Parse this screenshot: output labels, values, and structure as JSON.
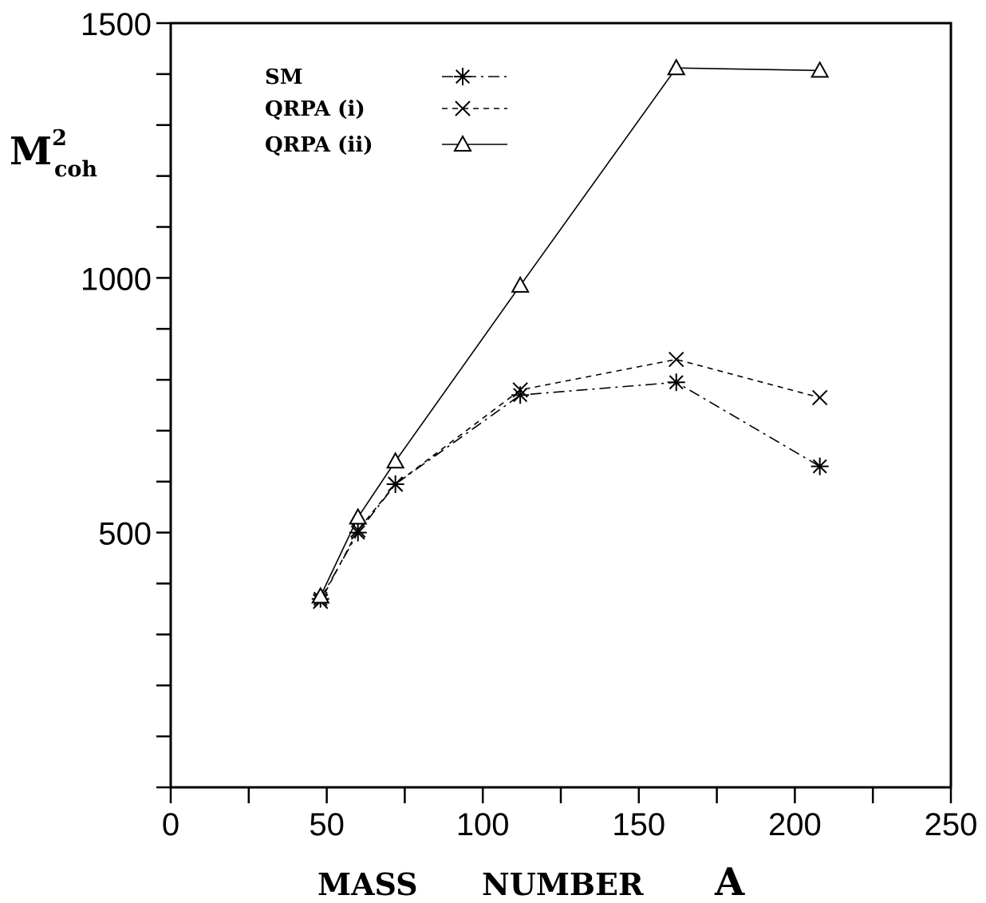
{
  "chart_data": {
    "type": "line",
    "xlabel": "MASS NUMBER A",
    "xlabel_words": [
      "MASS",
      "NUMBER",
      "A"
    ],
    "ylabel": {
      "base": "M",
      "superscript": "2",
      "subscript": "coh"
    },
    "xlim": [
      0,
      250
    ],
    "ylim": [
      0,
      1500
    ],
    "x_ticks": [
      0,
      50,
      100,
      150,
      200,
      250
    ],
    "x_minor_ticks": [
      25,
      75,
      125,
      175,
      225
    ],
    "y_tick_labels": [
      500,
      1000,
      1500
    ],
    "y_minor_ticks": [
      100,
      200,
      300,
      400,
      600,
      700,
      800,
      900,
      1100,
      1200,
      1300,
      1400
    ],
    "grid": false,
    "legend_position": "top-left",
    "series": [
      {
        "name": "SM",
        "marker": "asterisk",
        "line_style": "dash-dot",
        "x": [
          48,
          60,
          72,
          112,
          162,
          208
        ],
        "y": [
          370,
          500,
          595,
          770,
          795,
          630
        ]
      },
      {
        "name": "QRPA (i)",
        "marker": "x",
        "line_style": "dashed",
        "x": [
          48,
          60,
          72,
          112,
          162,
          208
        ],
        "y": [
          365,
          505,
          595,
          780,
          840,
          765
        ]
      },
      {
        "name": "QRPA (ii)",
        "marker": "triangle",
        "line_style": "solid",
        "x": [
          48,
          60,
          72,
          112,
          162,
          208
        ],
        "y": [
          375,
          530,
          640,
          985,
          1412,
          1407
        ]
      }
    ]
  },
  "colors": {
    "line": "#000000",
    "background": "#ffffff"
  }
}
